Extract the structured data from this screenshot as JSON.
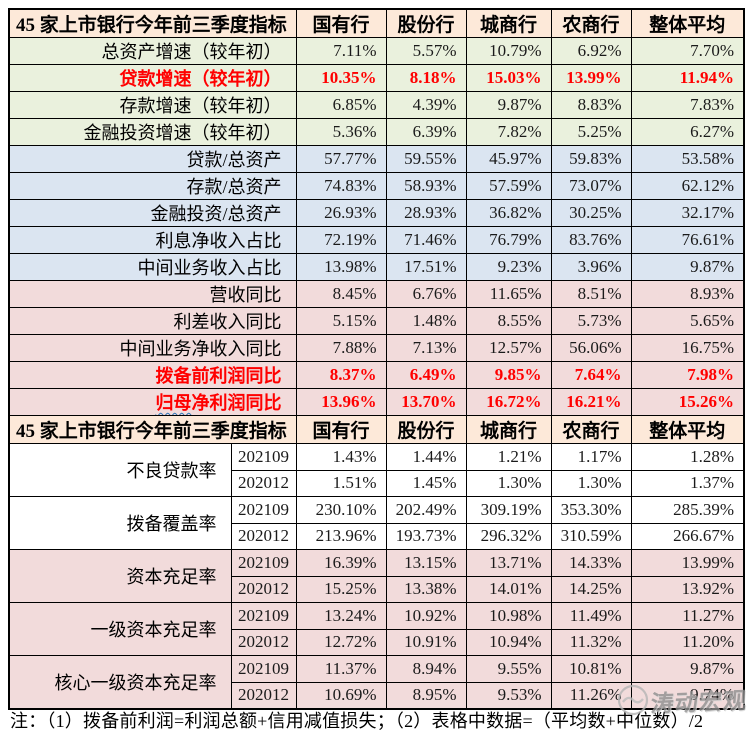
{
  "table1": {
    "title": "45 家上市银行今年前三季度指标",
    "columns": [
      "国有行",
      "股份行",
      "城商行",
      "农商行",
      "整体平均"
    ],
    "rows": [
      {
        "label": "总资产增速（较年初）",
        "group": "green",
        "highlight": false,
        "values": [
          "7.11%",
          "5.57%",
          "10.79%",
          "6.92%",
          "7.70%"
        ]
      },
      {
        "label": "贷款增速（较年初）",
        "group": "green",
        "highlight": true,
        "values": [
          "10.35%",
          "8.18%",
          "15.03%",
          "13.99%",
          "11.94%"
        ]
      },
      {
        "label": "存款增速（较年初）",
        "group": "green",
        "highlight": false,
        "values": [
          "6.85%",
          "4.39%",
          "9.87%",
          "8.83%",
          "7.83%"
        ]
      },
      {
        "label": "金融投资增速（较年初）",
        "group": "green",
        "highlight": false,
        "values": [
          "5.36%",
          "6.39%",
          "7.82%",
          "5.25%",
          "6.27%"
        ]
      },
      {
        "label": "贷款/总资产",
        "group": "blue",
        "highlight": false,
        "values": [
          "57.77%",
          "59.55%",
          "45.97%",
          "59.83%",
          "53.58%"
        ]
      },
      {
        "label": "存款/总资产",
        "group": "blue",
        "highlight": false,
        "values": [
          "74.83%",
          "58.93%",
          "57.59%",
          "73.07%",
          "62.12%"
        ]
      },
      {
        "label": "金融投资/总资产",
        "group": "blue",
        "highlight": false,
        "values": [
          "26.93%",
          "28.93%",
          "36.82%",
          "30.25%",
          "32.17%"
        ]
      },
      {
        "label": "利息净收入占比",
        "group": "blue",
        "highlight": false,
        "values": [
          "72.19%",
          "71.46%",
          "76.79%",
          "83.76%",
          "76.61%"
        ]
      },
      {
        "label": "中间业务收入占比",
        "group": "blue",
        "highlight": false,
        "values": [
          "13.98%",
          "17.51%",
          "9.23%",
          "3.96%",
          "9.87%"
        ]
      },
      {
        "label": "营收同比",
        "group": "pink",
        "highlight": false,
        "values": [
          "8.45%",
          "6.76%",
          "11.65%",
          "8.51%",
          "8.93%"
        ]
      },
      {
        "label": "利差收入同比",
        "group": "pink",
        "highlight": false,
        "values": [
          "5.15%",
          "1.48%",
          "8.55%",
          "5.73%",
          "5.65%"
        ]
      },
      {
        "label": "中间业务净收入同比",
        "group": "pink",
        "highlight": false,
        "values": [
          "7.88%",
          "7.13%",
          "12.57%",
          "56.06%",
          "16.75%"
        ]
      },
      {
        "label": "拨备前利润同比",
        "group": "pink",
        "highlight": true,
        "values": [
          "8.37%",
          "6.49%",
          "9.85%",
          "7.64%",
          "7.98%"
        ]
      },
      {
        "label": "归母净利润同比",
        "group": "pink",
        "highlight": true,
        "squiggle_len": 2,
        "values": [
          "13.96%",
          "13.70%",
          "16.72%",
          "16.21%",
          "15.26%"
        ]
      }
    ]
  },
  "table2": {
    "title": "45 家上市银行今年前三季度指标",
    "columns": [
      "国有行",
      "股份行",
      "城商行",
      "农商行",
      "整体平均"
    ],
    "groups": [
      {
        "label": "不良贷款率",
        "bg": "white",
        "rows": [
          {
            "period": "202109",
            "values": [
              "1.43%",
              "1.44%",
              "1.21%",
              "1.17%",
              "1.28%"
            ]
          },
          {
            "period": "202012",
            "values": [
              "1.51%",
              "1.45%",
              "1.30%",
              "1.30%",
              "1.37%"
            ]
          }
        ]
      },
      {
        "label": "拨备覆盖率",
        "bg": "white",
        "rows": [
          {
            "period": "202109",
            "values": [
              "230.10%",
              "202.49%",
              "309.19%",
              "353.30%",
              "285.39%"
            ]
          },
          {
            "period": "202012",
            "values": [
              "213.96%",
              "193.73%",
              "296.32%",
              "310.59%",
              "266.67%"
            ]
          }
        ]
      },
      {
        "label": "资本充足率",
        "bg": "pink",
        "rows": [
          {
            "period": "202109",
            "values": [
              "16.39%",
              "13.15%",
              "13.71%",
              "14.33%",
              "13.99%"
            ]
          },
          {
            "period": "202012",
            "values": [
              "15.25%",
              "13.38%",
              "14.01%",
              "14.25%",
              "13.92%"
            ]
          }
        ]
      },
      {
        "label": "一级资本充足率",
        "bg": "pink",
        "rows": [
          {
            "period": "202109",
            "values": [
              "13.24%",
              "10.92%",
              "10.98%",
              "11.49%",
              "11.27%"
            ]
          },
          {
            "period": "202012",
            "values": [
              "12.72%",
              "10.91%",
              "10.94%",
              "11.32%",
              "11.20%"
            ]
          }
        ]
      },
      {
        "label": "核心一级资本充足率",
        "bg": "pink",
        "rows": [
          {
            "period": "202109",
            "values": [
              "11.37%",
              "8.94%",
              "9.55%",
              "10.81%",
              "9.87%"
            ]
          },
          {
            "period": "202012",
            "values": [
              "10.69%",
              "8.95%",
              "9.53%",
              "11.26%",
              "9.74%"
            ]
          }
        ]
      }
    ]
  },
  "footer": {
    "note": "注：（1）拨备前利润=利润总额+信用减值损失；（2）表格中数据=（平均数+中位数）/2"
  },
  "watermark": {
    "text": "涛动宏观"
  },
  "colors": {
    "header_bg": "#FDE9D9",
    "green_bg": "#EAF1DD",
    "blue_bg": "#DBE5F1",
    "pink_bg": "#F2DBDB",
    "white_bg": "#FFFFFF",
    "red_text": "#FF0000",
    "border": "#000000",
    "watermark": "#8F8F8F",
    "squiggle": "#2E75B6"
  }
}
